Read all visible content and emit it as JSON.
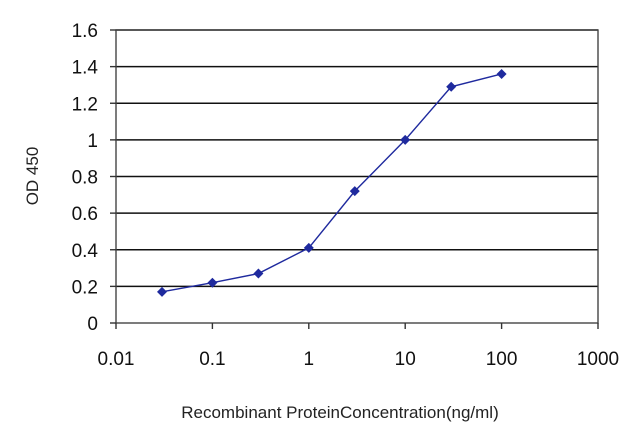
{
  "chart_data": {
    "type": "line",
    "title": "",
    "xlabel": "Recombinant ProteinConcentration(ng/ml)",
    "ylabel": "OD 450",
    "x_scale": "log",
    "xlim": [
      0.01,
      1000
    ],
    "ylim": [
      0,
      1.6
    ],
    "x_ticks": [
      "0.01",
      "0.1",
      "1",
      "10",
      "100",
      "1000"
    ],
    "y_ticks": [
      "0",
      "0.2",
      "0.4",
      "0.6",
      "0.8",
      "1",
      "1.2",
      "1.4",
      "1.6"
    ],
    "grid": "horizontal",
    "series": [
      {
        "color": "#1f2a9e",
        "marker": "diamond",
        "x": [
          0.03,
          0.1,
          0.3,
          1,
          3,
          10,
          30,
          100
        ],
        "y": [
          0.17,
          0.22,
          0.27,
          0.41,
          0.72,
          1.0,
          1.29,
          1.36
        ]
      }
    ]
  }
}
